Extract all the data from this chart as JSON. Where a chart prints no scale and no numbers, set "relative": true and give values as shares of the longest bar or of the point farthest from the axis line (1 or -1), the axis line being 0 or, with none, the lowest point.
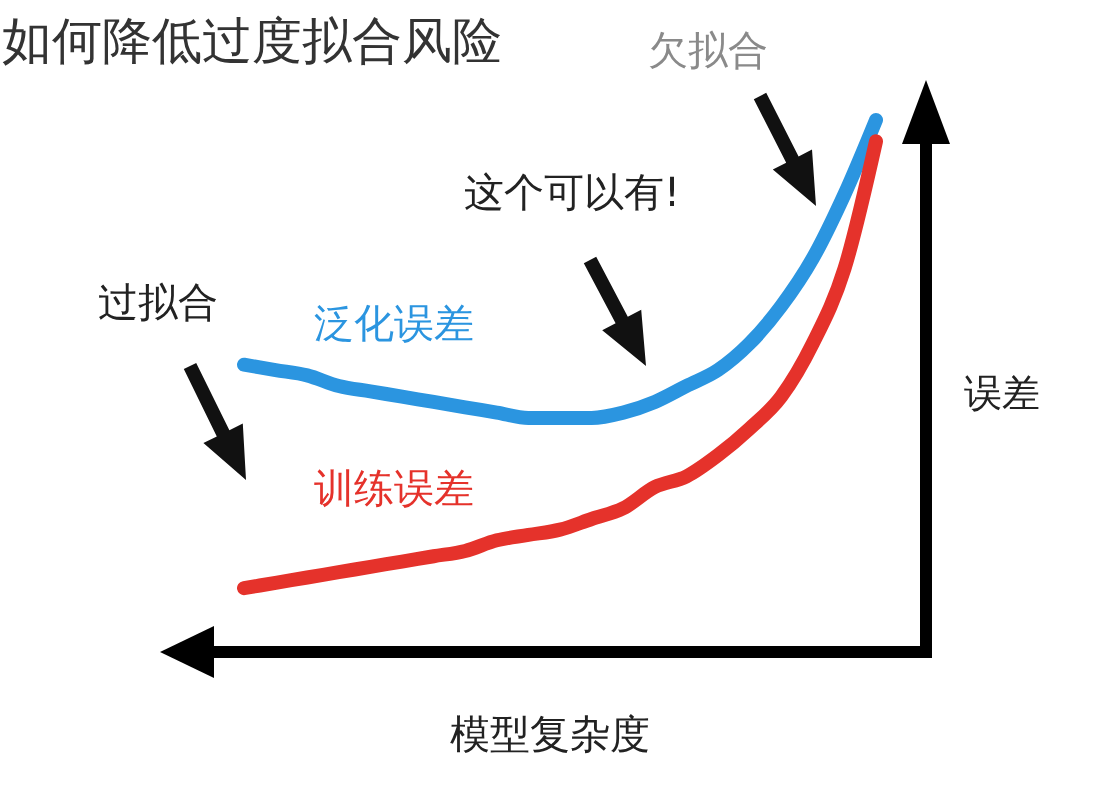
{
  "chart_data": {
    "type": "line",
    "title": "如何降低过度拟合风险",
    "xlabel": "模型复杂度",
    "ylabel": "误差",
    "relative": true,
    "categories": [
      null,
      null,
      null,
      null,
      null,
      null,
      null,
      null,
      null,
      null,
      null,
      null,
      null,
      null,
      null,
      null,
      null,
      null,
      null,
      null,
      null
    ],
    "series": [
      {
        "name": "泛化误差",
        "color": "#2b95e0",
        "values": [
          0.54,
          0.53,
          0.52,
          0.5,
          0.49,
          0.48,
          0.47,
          0.46,
          0.45,
          0.44,
          0.44,
          0.44,
          0.45,
          0.47,
          0.5,
          0.53,
          0.58,
          0.65,
          0.74,
          0.86,
          1
        ]
      },
      {
        "name": "训练误差",
        "color": "#e5322b",
        "values": [
          0.12,
          0.13,
          0.14,
          0.15,
          0.16,
          0.17,
          0.18,
          0.19,
          0.21,
          0.22,
          0.23,
          0.25,
          0.27,
          0.31,
          0.33,
          0.37,
          0.42,
          0.48,
          0.58,
          0.72,
          0.96
        ]
      }
    ],
    "annotations": [
      "过拟合",
      "这个可以有!",
      "欠拟合"
    ]
  }
}
